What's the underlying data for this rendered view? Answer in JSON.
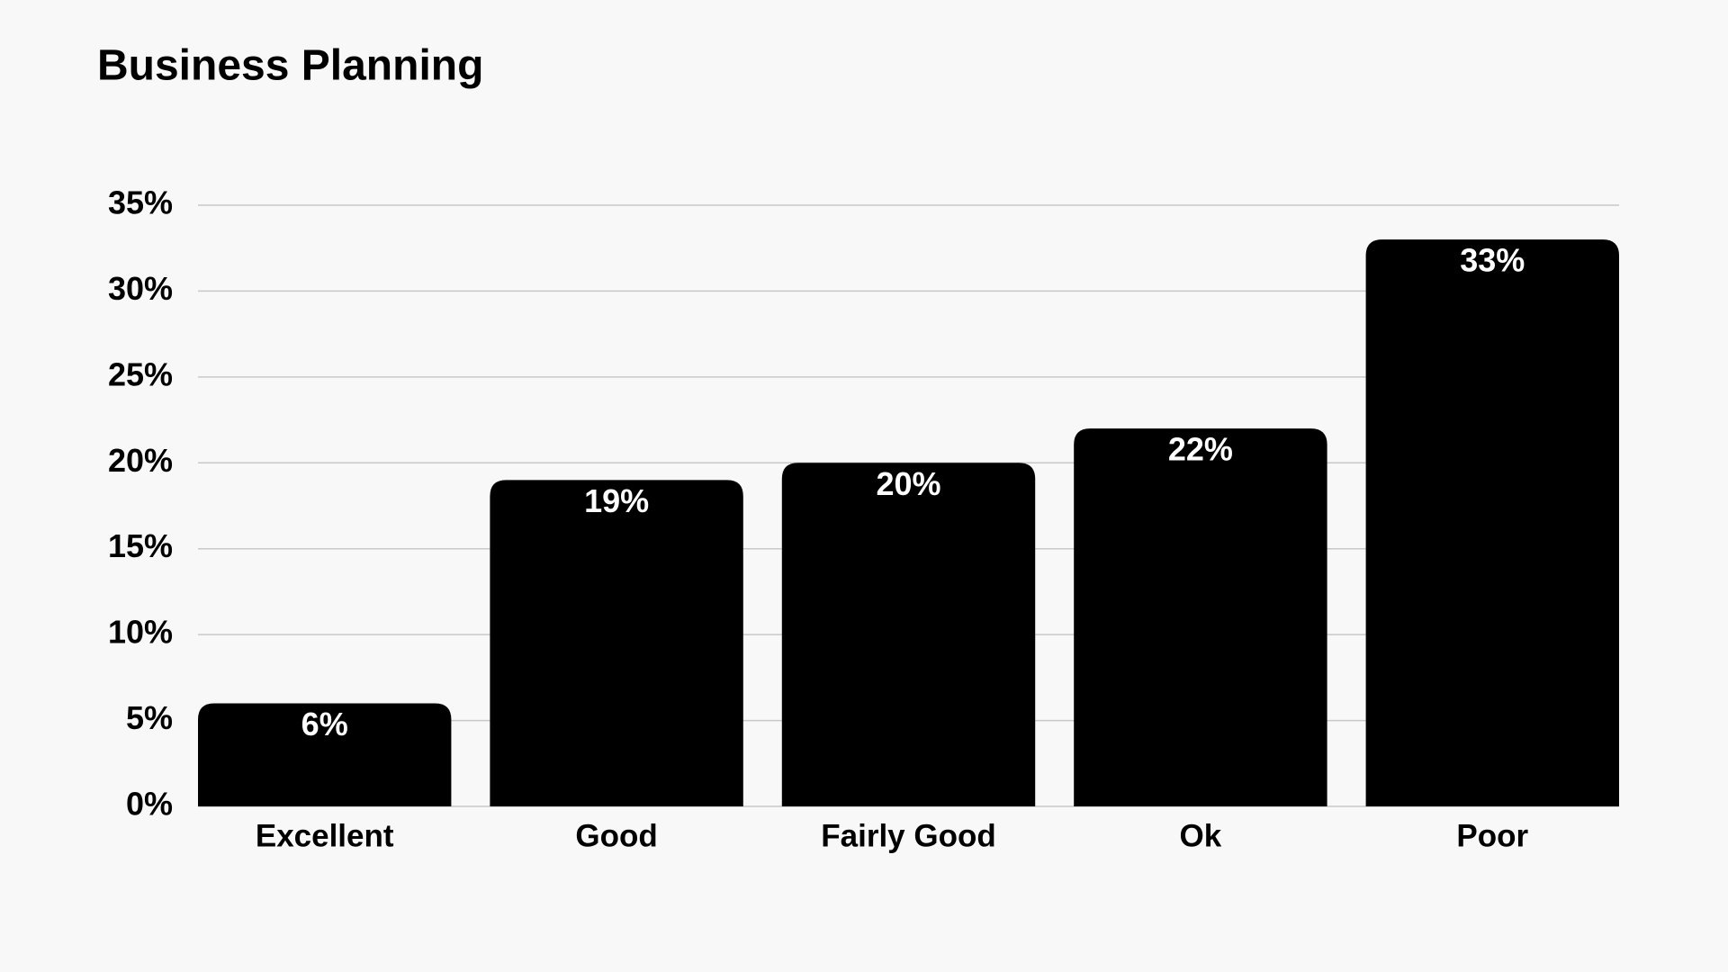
{
  "chart_data": {
    "type": "bar",
    "title": "Business Planning",
    "categories": [
      "Excellent",
      "Good",
      "Fairly Good",
      "Ok",
      "Poor"
    ],
    "values": [
      6,
      19,
      20,
      22,
      33
    ],
    "value_labels": [
      "6%",
      "19%",
      "20%",
      "22%",
      "33%"
    ],
    "color": "#000000",
    "ylim": [
      0,
      35
    ],
    "yticks": [
      {
        "value": 0,
        "label": "0%"
      },
      {
        "value": 5,
        "label": "5%"
      },
      {
        "value": 10,
        "label": "10%"
      },
      {
        "value": 15,
        "label": "15%"
      },
      {
        "value": 20,
        "label": "20%"
      },
      {
        "value": 25,
        "label": "25%"
      },
      {
        "value": 30,
        "label": "30%"
      },
      {
        "value": 35,
        "label": "35%"
      }
    ],
    "grid": true
  }
}
